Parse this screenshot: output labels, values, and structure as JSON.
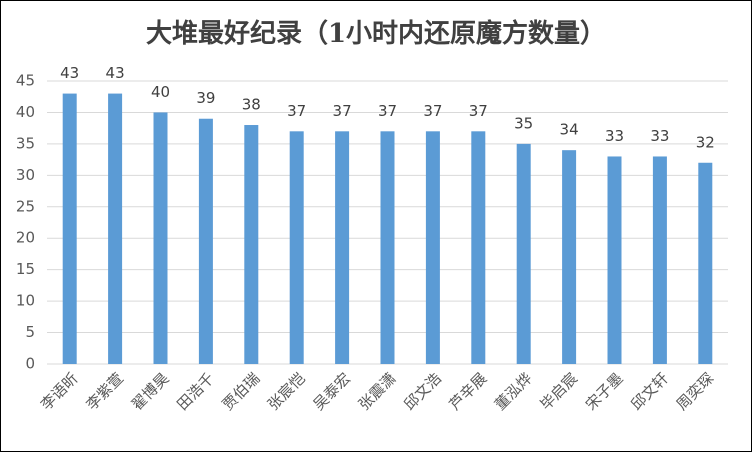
{
  "chart_data": {
    "type": "bar",
    "title": "大堆最好纪录（1小时内还原魔方数量）",
    "categories": [
      "李语昕",
      "李紫萱",
      "翟博昊",
      "田浩千",
      "贾伯瑞",
      "张宸恺",
      "吴泰宏",
      "张震潇",
      "邱文浩",
      "芦辛展",
      "董泓烨",
      "毕启宸",
      "宋子墨",
      "邱文轩",
      "周奕琛"
    ],
    "values": [
      43,
      43,
      40,
      39,
      38,
      37,
      37,
      37,
      37,
      37,
      35,
      34,
      33,
      33,
      32
    ],
    "color": "#5b9bd5",
    "ylim": [
      0,
      45
    ],
    "yticks": [
      0,
      5,
      10,
      15,
      20,
      25,
      30,
      35,
      40,
      45
    ],
    "grid": true
  }
}
